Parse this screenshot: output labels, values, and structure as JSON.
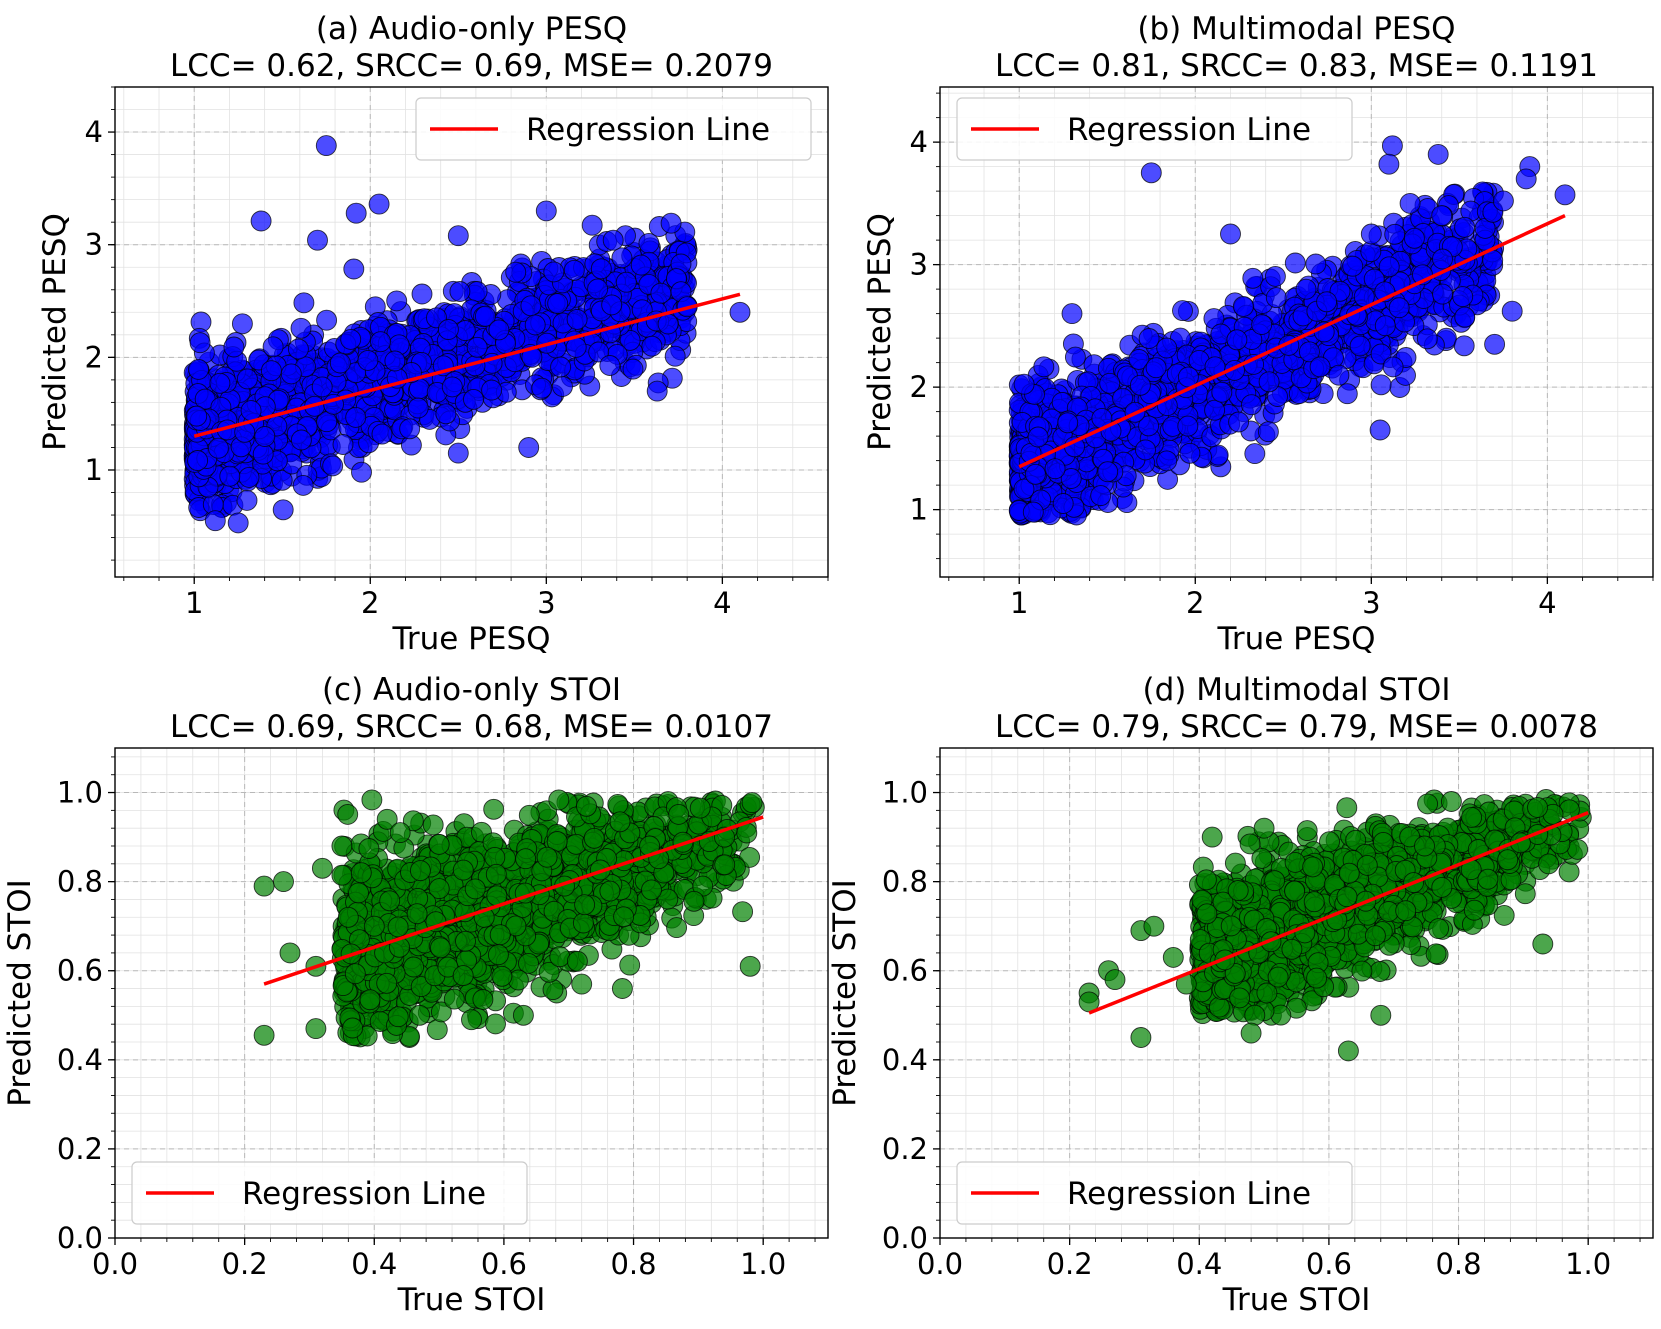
{
  "chart_data": [
    {
      "type": "scatter",
      "id": "a",
      "title": "(a) Audio-only PESQ",
      "subtitle": "LCC= 0.62, SRCC= 0.69, MSE= 0.2079",
      "xlabel": "True PESQ",
      "ylabel": "Predicted PESQ",
      "xlim": [
        0.55,
        4.6
      ],
      "ylim": [
        0.05,
        4.4
      ],
      "xticks": [
        1,
        2,
        3,
        4
      ],
      "yticks": [
        1,
        2,
        3,
        4
      ],
      "xtick_labels": [
        "1",
        "2",
        "3",
        "4"
      ],
      "ytick_labels": [
        "1",
        "2",
        "3",
        "4"
      ],
      "grid": true,
      "legend": {
        "label": "Regression Line",
        "position": "upper-right"
      },
      "point_color": "#0000ff",
      "regression": {
        "x": [
          1.0,
          4.1
        ],
        "y": [
          1.3,
          2.56
        ]
      },
      "sim": {
        "xmin": 1.0,
        "xmax": 3.8,
        "slope": 0.48,
        "intercept": 0.82,
        "noise": 0.28,
        "n": 1800,
        "seed": 11,
        "clip": [
          0.5,
          3.4
        ]
      },
      "points": [
        [
          1.75,
          3.88
        ],
        [
          1.38,
          3.21
        ],
        [
          1.92,
          3.28
        ],
        [
          2.05,
          3.36
        ],
        [
          3.0,
          3.3
        ],
        [
          2.5,
          3.08
        ],
        [
          3.45,
          3.08
        ],
        [
          3.38,
          3.04
        ],
        [
          3.8,
          2.45
        ],
        [
          4.1,
          2.4
        ],
        [
          3.63,
          1.7
        ],
        [
          2.9,
          1.2
        ],
        [
          2.5,
          1.15
        ],
        [
          1.12,
          0.55
        ],
        [
          1.25,
          0.53
        ],
        [
          1.3,
          0.73
        ],
        [
          1.95,
          0.98
        ],
        [
          1.7,
          3.04
        ]
      ]
    },
    {
      "type": "scatter",
      "id": "b",
      "title": "(b) Multimodal PESQ",
      "subtitle": "LCC= 0.81, SRCC= 0.83, MSE= 0.1191",
      "xlabel": "True PESQ",
      "ylabel": "Predicted PESQ",
      "xlim": [
        0.55,
        4.6
      ],
      "ylim": [
        0.45,
        4.45
      ],
      "xticks": [
        1,
        2,
        3,
        4
      ],
      "yticks": [
        1,
        2,
        3,
        4
      ],
      "xtick_labels": [
        "1",
        "2",
        "3",
        "4"
      ],
      "ytick_labels": [
        "1",
        "2",
        "3",
        "4"
      ],
      "grid": true,
      "legend": {
        "label": "Regression Line",
        "position": "upper-left"
      },
      "point_color": "#0000ff",
      "regression": {
        "x": [
          1.0,
          4.1
        ],
        "y": [
          1.35,
          3.4
        ]
      },
      "sim": {
        "xmin": 1.0,
        "xmax": 3.7,
        "slope": 0.66,
        "intercept": 0.69,
        "noise": 0.26,
        "n": 1800,
        "seed": 23,
        "clip": [
          0.95,
          3.6
        ]
      },
      "points": [
        [
          1.75,
          3.75
        ],
        [
          3.12,
          3.97
        ],
        [
          3.38,
          3.9
        ],
        [
          3.1,
          3.82
        ],
        [
          3.9,
          3.8
        ],
        [
          3.88,
          3.7
        ],
        [
          4.1,
          3.57
        ],
        [
          3.75,
          3.52
        ],
        [
          3.22,
          3.5
        ],
        [
          3.4,
          3.4
        ],
        [
          3.0,
          3.25
        ],
        [
          2.2,
          3.25
        ],
        [
          3.8,
          2.62
        ],
        [
          3.7,
          2.35
        ],
        [
          3.05,
          1.65
        ],
        [
          1.3,
          2.6
        ],
        [
          1.08,
          0.98
        ],
        [
          1.25,
          1.05
        ]
      ]
    },
    {
      "type": "scatter",
      "id": "c",
      "title": "(c) Audio-only STOI",
      "subtitle": "LCC= 0.69, SRCC= 0.68, MSE= 0.0107",
      "xlabel": "True STOI",
      "ylabel": "Predicted STOI",
      "xlim": [
        0.0,
        1.1
      ],
      "ylim": [
        0.0,
        1.1
      ],
      "xticks": [
        0.0,
        0.2,
        0.4,
        0.6,
        0.8,
        1.0
      ],
      "yticks": [
        0.0,
        0.2,
        0.4,
        0.6,
        0.8,
        1.0
      ],
      "xtick_labels": [
        "0.0",
        "0.2",
        "0.4",
        "0.6",
        "0.8",
        "1.0"
      ],
      "ytick_labels": [
        "0.0",
        "0.2",
        "0.4",
        "0.6",
        "0.8",
        "1.0"
      ],
      "grid": true,
      "legend": {
        "label": "Regression Line",
        "position": "lower-left"
      },
      "point_color": "#008000",
      "regression": {
        "x": [
          0.23,
          1.0
        ],
        "y": [
          0.57,
          0.945
        ]
      },
      "sim": {
        "xmin": 0.35,
        "xmax": 1.0,
        "slope": 0.45,
        "intercept": 0.47,
        "noise": 0.085,
        "n": 1700,
        "seed": 37,
        "clip": [
          0.45,
          0.985
        ],
        "xskew": 0.6
      },
      "points": [
        [
          0.23,
          0.79
        ],
        [
          0.26,
          0.8
        ],
        [
          0.23,
          0.455
        ],
        [
          0.31,
          0.47
        ],
        [
          0.27,
          0.64
        ],
        [
          0.31,
          0.61
        ],
        [
          0.32,
          0.83
        ],
        [
          0.35,
          0.88
        ],
        [
          0.38,
          0.82
        ],
        [
          0.36,
          0.72
        ],
        [
          0.42,
          0.94
        ],
        [
          0.44,
          0.91
        ],
        [
          0.47,
          0.5
        ],
        [
          0.55,
          0.49
        ],
        [
          0.63,
          0.5
        ],
        [
          0.98,
          0.61
        ],
        [
          0.72,
          0.57
        ],
        [
          0.4,
          0.7
        ]
      ]
    },
    {
      "type": "scatter",
      "id": "d",
      "title": "(d) Multimodal STOI",
      "subtitle": "LCC= 0.79, SRCC= 0.79, MSE= 0.0078",
      "xlabel": "True STOI",
      "ylabel": "Predicted STOI",
      "xlim": [
        0.0,
        1.1
      ],
      "ylim": [
        0.0,
        1.1
      ],
      "xticks": [
        0.0,
        0.2,
        0.4,
        0.6,
        0.8,
        1.0
      ],
      "yticks": [
        0.0,
        0.2,
        0.4,
        0.6,
        0.8,
        1.0
      ],
      "xtick_labels": [
        "0.0",
        "0.2",
        "0.4",
        "0.6",
        "0.8",
        "1.0"
      ],
      "ytick_labels": [
        "0.0",
        "0.2",
        "0.4",
        "0.6",
        "0.8",
        "1.0"
      ],
      "grid": true,
      "legend": {
        "label": "Regression Line",
        "position": "lower-left"
      },
      "point_color": "#008000",
      "regression": {
        "x": [
          0.23,
          1.0
        ],
        "y": [
          0.505,
          0.955
        ]
      },
      "sim": {
        "xmin": 0.4,
        "xmax": 1.0,
        "slope": 0.55,
        "intercept": 0.4,
        "noise": 0.07,
        "n": 1700,
        "seed": 53,
        "clip": [
          0.5,
          0.985
        ],
        "xskew": 0.55
      },
      "points": [
        [
          0.23,
          0.55
        ],
        [
          0.23,
          0.53
        ],
        [
          0.26,
          0.6
        ],
        [
          0.27,
          0.58
        ],
        [
          0.31,
          0.69
        ],
        [
          0.31,
          0.45
        ],
        [
          0.33,
          0.7
        ],
        [
          0.42,
          0.9
        ],
        [
          0.48,
          0.46
        ],
        [
          0.63,
          0.42
        ],
        [
          0.68,
          0.5
        ],
        [
          0.93,
          0.66
        ],
        [
          0.36,
          0.63
        ],
        [
          0.38,
          0.57
        ],
        [
          0.46,
          0.78
        ],
        [
          0.5,
          0.92
        ]
      ]
    }
  ]
}
